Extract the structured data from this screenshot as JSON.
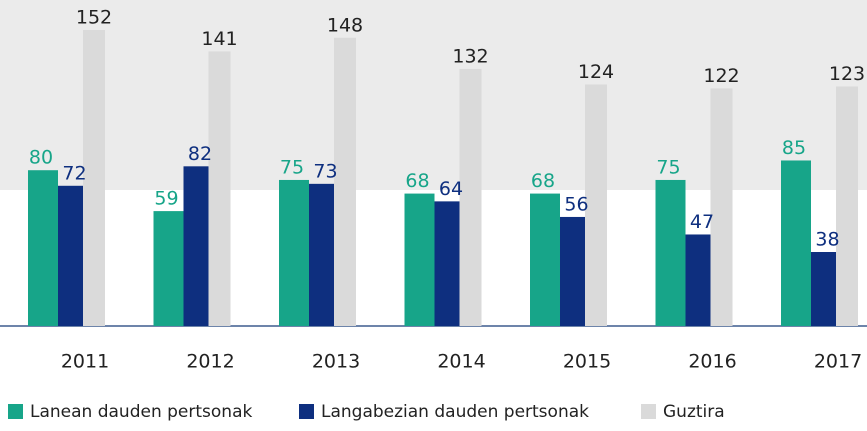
{
  "chart_data": {
    "type": "bar",
    "categories": [
      "2011",
      "2012",
      "2013",
      "2014",
      "2015",
      "2016",
      "2017"
    ],
    "series": [
      {
        "name": "Lanean dauden pertsonak",
        "color": "#17a589",
        "values": [
          80,
          59,
          75,
          68,
          68,
          75,
          85
        ]
      },
      {
        "name": "Langabezian dauden pertsonak",
        "color": "#0e2f7f",
        "values": [
          72,
          82,
          73,
          64,
          56,
          47,
          38
        ]
      },
      {
        "name": "Guztira",
        "color": "#dadada",
        "values": [
          152,
          141,
          148,
          132,
          124,
          122,
          123
        ]
      }
    ],
    "legend": "bottom"
  }
}
